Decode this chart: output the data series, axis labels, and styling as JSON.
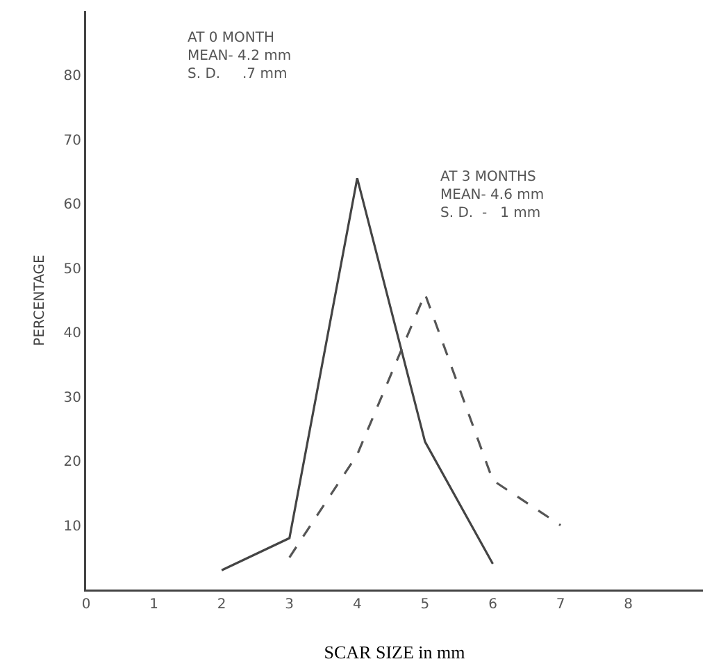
{
  "chart_data": {
    "type": "line",
    "xlabel": "SCAR SIZE in mm",
    "ylabel": "PERCENTAGE",
    "xlim": [
      0,
      9.1
    ],
    "xticks": [
      0,
      1,
      2,
      3,
      4,
      5,
      6,
      7,
      8
    ],
    "ylim": [
      0,
      90
    ],
    "yticks": [
      10,
      20,
      30,
      40,
      50,
      60,
      70,
      80
    ],
    "annotations": [
      "AT 0 MONTH\nMEAN- 4.2 mm\nS. D.     .7 mm",
      "AT 3 MONTHS\nMEAN- 4.6 mm\nS. D.  -   1 mm"
    ],
    "series": [
      {
        "color": "#444444",
        "line_style": "solid",
        "x": [
          2,
          3,
          4,
          5,
          6
        ],
        "values": [
          3,
          8,
          64,
          23,
          4
        ]
      },
      {
        "color": "#555555",
        "line_style": "dashed",
        "x": [
          3,
          4,
          5,
          6,
          7
        ],
        "values": [
          5,
          21,
          46,
          17,
          10
        ]
      }
    ]
  }
}
